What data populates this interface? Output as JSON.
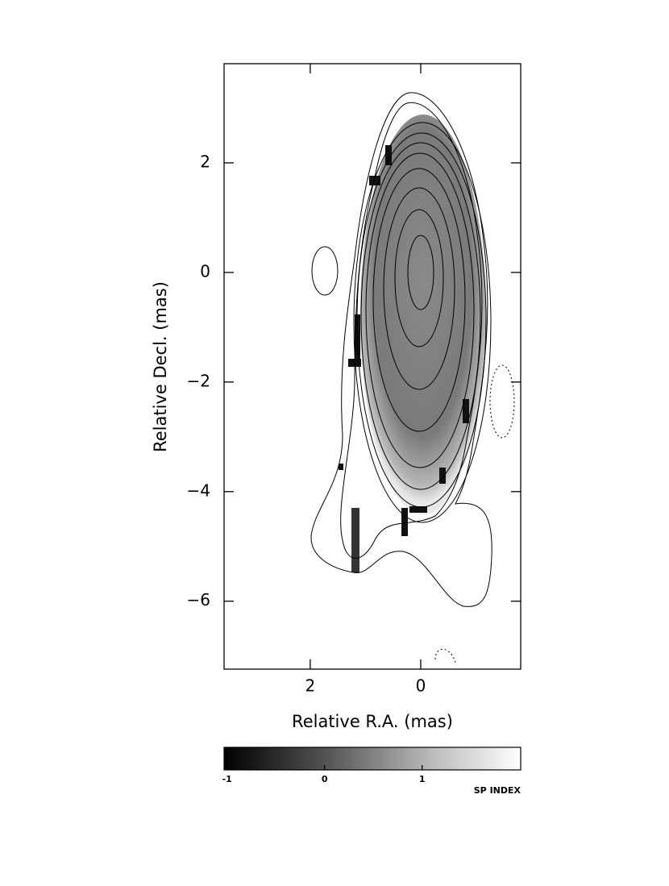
{
  "chart_data": {
    "type": "image",
    "xlabel": "Relative R.A. (mas)",
    "ylabel": "Relative Decl. (mas)",
    "xlim": [
      3.56,
      -1.81
    ],
    "ylim": [
      -7.24,
      3.81
    ],
    "xticks": [
      2,
      0
    ],
    "yticks": [
      2,
      0,
      {
        "value": -2,
        "label": "−2"
      },
      {
        "value": -4,
        "label": "−4"
      },
      {
        "value": -6,
        "label": "−6"
      }
    ],
    "colorbar": {
      "label": "SP INDEX",
      "lim": [
        -1.03,
        2.01
      ],
      "ticks": [
        -1,
        0,
        1
      ]
    }
  }
}
